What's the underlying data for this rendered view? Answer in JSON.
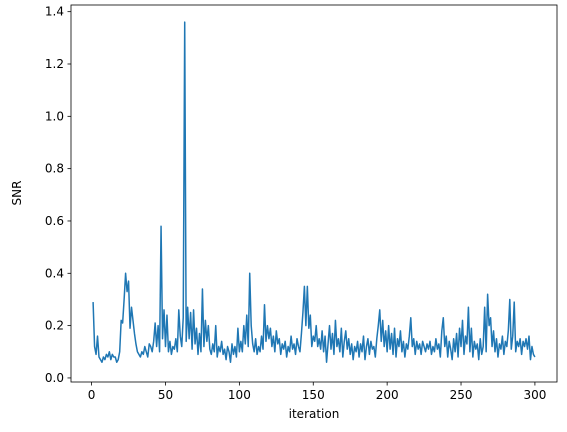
{
  "chart_data": {
    "type": "line",
    "xlabel": "iteration",
    "ylabel": "SNR",
    "color": "#1f77b4",
    "xlim": [
      -13.95,
      314.95
    ],
    "ylim": [
      -0.0155,
      1.4255
    ],
    "xticks": [
      0,
      50,
      100,
      150,
      200,
      250,
      300
    ],
    "yticks": [
      {
        "value": 0,
        "label": "0.0"
      },
      0.2,
      0.4,
      0.6,
      0.8,
      {
        "value": 1,
        "label": "1.0"
      },
      1.2,
      1.4
    ],
    "x": [
      1,
      2,
      3,
      4,
      5,
      6,
      7,
      8,
      9,
      10,
      11,
      12,
      13,
      14,
      15,
      16,
      17,
      18,
      19,
      20,
      21,
      22,
      23,
      24,
      25,
      26,
      27,
      28,
      29,
      30,
      31,
      32,
      33,
      34,
      35,
      36,
      37,
      38,
      39,
      40,
      41,
      42,
      43,
      44,
      45,
      46,
      47,
      48,
      49,
      50,
      51,
      52,
      53,
      54,
      55,
      56,
      57,
      58,
      59,
      60,
      61,
      62,
      63,
      64,
      65,
      66,
      67,
      68,
      69,
      70,
      71,
      72,
      73,
      74,
      75,
      76,
      77,
      78,
      79,
      80,
      81,
      82,
      83,
      84,
      85,
      86,
      87,
      88,
      89,
      90,
      91,
      92,
      93,
      94,
      95,
      96,
      97,
      98,
      99,
      100,
      101,
      102,
      103,
      104,
      105,
      106,
      107,
      108,
      109,
      110,
      111,
      112,
      113,
      114,
      115,
      116,
      117,
      118,
      119,
      120,
      121,
      122,
      123,
      124,
      125,
      126,
      127,
      128,
      129,
      130,
      131,
      132,
      133,
      134,
      135,
      136,
      137,
      138,
      139,
      140,
      141,
      142,
      143,
      144,
      145,
      146,
      147,
      148,
      149,
      150,
      151,
      152,
      153,
      154,
      155,
      156,
      157,
      158,
      159,
      160,
      161,
      162,
      163,
      164,
      165,
      166,
      167,
      168,
      169,
      170,
      171,
      172,
      173,
      174,
      175,
      176,
      177,
      178,
      179,
      180,
      181,
      182,
      183,
      184,
      185,
      186,
      187,
      188,
      189,
      190,
      191,
      192,
      193,
      194,
      195,
      196,
      197,
      198,
      199,
      200,
      201,
      202,
      203,
      204,
      205,
      206,
      207,
      208,
      209,
      210,
      211,
      212,
      213,
      214,
      215,
      216,
      217,
      218,
      219,
      220,
      221,
      222,
      223,
      224,
      225,
      226,
      227,
      228,
      229,
      230,
      231,
      232,
      233,
      234,
      235,
      236,
      237,
      238,
      239,
      240,
      241,
      242,
      243,
      244,
      245,
      246,
      247,
      248,
      249,
      250,
      251,
      252,
      253,
      254,
      255,
      256,
      257,
      258,
      259,
      260,
      261,
      262,
      263,
      264,
      265,
      266,
      267,
      268,
      269,
      270,
      271,
      272,
      273,
      274,
      275,
      276,
      277,
      278,
      279,
      280,
      281,
      282,
      283,
      284,
      285,
      286,
      287,
      288,
      289,
      290,
      291,
      292,
      293,
      294,
      295,
      296,
      297,
      298,
      299,
      300
    ],
    "values": [
      0.29,
      0.12,
      0.09,
      0.16,
      0.08,
      0.07,
      0.06,
      0.08,
      0.07,
      0.09,
      0.08,
      0.1,
      0.07,
      0.09,
      0.08,
      0.08,
      0.06,
      0.07,
      0.1,
      0.22,
      0.21,
      0.3,
      0.4,
      0.33,
      0.37,
      0.19,
      0.27,
      0.22,
      0.17,
      0.13,
      0.1,
      0.09,
      0.08,
      0.1,
      0.09,
      0.12,
      0.1,
      0.08,
      0.13,
      0.12,
      0.1,
      0.14,
      0.21,
      0.12,
      0.2,
      0.1,
      0.58,
      0.15,
      0.26,
      0.12,
      0.24,
      0.1,
      0.14,
      0.09,
      0.12,
      0.11,
      0.15,
      0.1,
      0.26,
      0.16,
      0.12,
      0.23,
      1.36,
      0.14,
      0.27,
      0.15,
      0.25,
      0.11,
      0.26,
      0.13,
      0.19,
      0.09,
      0.17,
      0.1,
      0.34,
      0.12,
      0.22,
      0.14,
      0.2,
      0.11,
      0.09,
      0.13,
      0.1,
      0.2,
      0.08,
      0.12,
      0.1,
      0.14,
      0.09,
      0.11,
      0.07,
      0.12,
      0.1,
      0.06,
      0.13,
      0.09,
      0.12,
      0.08,
      0.19,
      0.1,
      0.14,
      0.1,
      0.2,
      0.13,
      0.24,
      0.12,
      0.4,
      0.2,
      0.13,
      0.1,
      0.15,
      0.09,
      0.12,
      0.1,
      0.16,
      0.11,
      0.28,
      0.14,
      0.2,
      0.15,
      0.19,
      0.12,
      0.16,
      0.1,
      0.18,
      0.13,
      0.15,
      0.09,
      0.13,
      0.11,
      0.14,
      0.08,
      0.12,
      0.1,
      0.16,
      0.11,
      0.13,
      0.09,
      0.15,
      0.12,
      0.1,
      0.17,
      0.25,
      0.35,
      0.2,
      0.35,
      0.19,
      0.24,
      0.12,
      0.16,
      0.14,
      0.2,
      0.12,
      0.15,
      0.11,
      0.18,
      0.1,
      0.16,
      0.06,
      0.13,
      0.2,
      0.11,
      0.17,
      0.09,
      0.22,
      0.12,
      0.15,
      0.1,
      0.19,
      0.08,
      0.14,
      0.18,
      0.11,
      0.15,
      0.09,
      0.13,
      0.07,
      0.12,
      0.1,
      0.14,
      0.08,
      0.13,
      0.1,
      0.16,
      0.07,
      0.12,
      0.15,
      0.09,
      0.14,
      0.11,
      0.12,
      0.08,
      0.15,
      0.2,
      0.26,
      0.14,
      0.22,
      0.12,
      0.18,
      0.1,
      0.2,
      0.11,
      0.17,
      0.09,
      0.19,
      0.08,
      0.15,
      0.12,
      0.18,
      0.1,
      0.14,
      0.08,
      0.13,
      0.11,
      0.16,
      0.23,
      0.12,
      0.15,
      0.09,
      0.14,
      0.11,
      0.13,
      0.09,
      0.14,
      0.12,
      0.1,
      0.13,
      0.11,
      0.14,
      0.09,
      0.12,
      0.1,
      0.15,
      0.11,
      0.13,
      0.08,
      0.18,
      0.23,
      0.12,
      0.16,
      0.08,
      0.14,
      0.11,
      0.07,
      0.15,
      0.1,
      0.17,
      0.08,
      0.19,
      0.12,
      0.22,
      0.09,
      0.16,
      0.13,
      0.27,
      0.1,
      0.19,
      0.08,
      0.14,
      0.11,
      0.13,
      0.07,
      0.15,
      0.09,
      0.12,
      0.27,
      0.1,
      0.32,
      0.2,
      0.23,
      0.12,
      0.18,
      0.1,
      0.15,
      0.08,
      0.13,
      0.11,
      0.16,
      0.09,
      0.14,
      0.12,
      0.18,
      0.3,
      0.11,
      0.16,
      0.29,
      0.1,
      0.14,
      0.12,
      0.15,
      0.09,
      0.14,
      0.12,
      0.15,
      0.11,
      0.16,
      0.07,
      0.12,
      0.09,
      0.08
    ]
  }
}
